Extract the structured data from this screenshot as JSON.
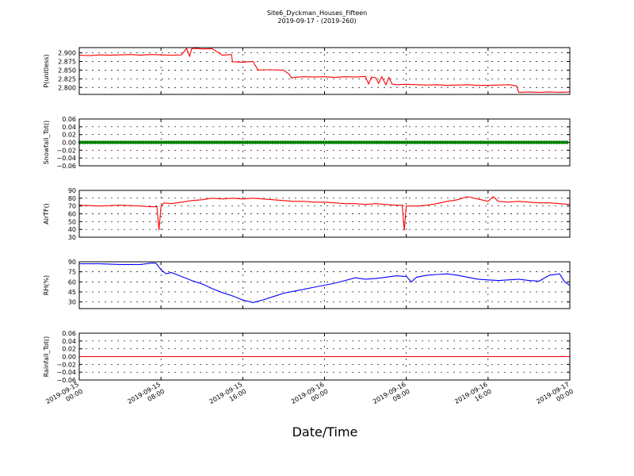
{
  "figure": {
    "title": "Site6_Dyckman_Houses_Fifteen",
    "subtitle": "2019-09-17 - (2019-260)",
    "xlabel": "Date/Time"
  },
  "chart_data": {
    "type": "line",
    "title": "Site6_Dyckman_Houses_Fifteen",
    "subtitle": "2019-09-17 - (2019-260)",
    "xlabel": "Date/Time",
    "x_ticks": [
      {
        "line1": "2019-09-15",
        "line2": "00:00",
        "t": 0
      },
      {
        "line1": "2019-09-15",
        "line2": "08:00",
        "t": 8
      },
      {
        "line1": "2019-09-15",
        "line2": "16:00",
        "t": 16
      },
      {
        "line1": "2019-09-16",
        "line2": "00:00",
        "t": 24
      },
      {
        "line1": "2019-09-16",
        "line2": "08:00",
        "t": 32
      },
      {
        "line1": "2019-09-16",
        "line2": "16:00",
        "t": 40
      },
      {
        "line1": "2019-09-17",
        "line2": "00:00",
        "t": 48
      }
    ],
    "xlim": [
      0,
      48
    ],
    "grid": true,
    "panels": [
      {
        "ylabel": "P(unitless)",
        "ylim": [
          2.78,
          2.915
        ],
        "yticks": [
          2.8,
          2.825,
          2.85,
          2.875,
          2.9
        ],
        "ytick_labels": [
          "2.800",
          "2.825",
          "2.850",
          "2.875",
          "2.900"
        ],
        "color": "#ff0000",
        "style": "line",
        "series": {
          "x": [
            0,
            1,
            2,
            3,
            4,
            5,
            6,
            7,
            8,
            9,
            10,
            10.5,
            10.8,
            11,
            11.5,
            12,
            13,
            14,
            14.9,
            15,
            16,
            17,
            17.5,
            18,
            19,
            20,
            20.5,
            20.8,
            21,
            21.5,
            22,
            23,
            24,
            25,
            26,
            27,
            28,
            28.3,
            28.6,
            29,
            29.3,
            29.6,
            30,
            30.3,
            30.6,
            31,
            32,
            33,
            34,
            35,
            36,
            37,
            38,
            39,
            40,
            41,
            42,
            42.5,
            42.8,
            43,
            44,
            45,
            46,
            47,
            48
          ],
          "values": [
            2.893,
            2.892,
            2.894,
            2.893,
            2.894,
            2.895,
            2.893,
            2.895,
            2.894,
            2.893,
            2.894,
            2.913,
            2.89,
            2.912,
            2.913,
            2.911,
            2.912,
            2.893,
            2.895,
            2.874,
            2.873,
            2.875,
            2.85,
            2.851,
            2.851,
            2.85,
            2.839,
            2.827,
            2.829,
            2.83,
            2.831,
            2.83,
            2.831,
            2.829,
            2.831,
            2.83,
            2.832,
            2.81,
            2.83,
            2.828,
            2.812,
            2.831,
            2.808,
            2.829,
            2.81,
            2.808,
            2.809,
            2.808,
            2.807,
            2.808,
            2.806,
            2.807,
            2.808,
            2.806,
            2.806,
            2.807,
            2.808,
            2.806,
            2.804,
            2.786,
            2.787,
            2.786,
            2.787,
            2.786,
            2.787
          ]
        }
      },
      {
        "ylabel": "Snowfall_Tot()",
        "ylim": [
          -0.06,
          0.06
        ],
        "yticks": [
          -0.06,
          -0.04,
          -0.02,
          0.0,
          0.02,
          0.04,
          0.06
        ],
        "ytick_labels": [
          "−0.06",
          "−0.04",
          "−0.02",
          "0.00",
          "0.02",
          "0.04",
          "0.06"
        ],
        "color": "#008000",
        "style": "markers",
        "series": {
          "x": [
            0,
            48
          ],
          "values": [
            0,
            0
          ]
        }
      },
      {
        "ylabel": "AirTF()",
        "ylim": [
          30,
          90
        ],
        "yticks": [
          30,
          40,
          50,
          60,
          70,
          80,
          90
        ],
        "ytick_labels": [
          "30",
          "40",
          "50",
          "60",
          "70",
          "80",
          "90"
        ],
        "color": "#ff0000",
        "style": "line",
        "series": {
          "x": [
            0,
            2,
            4,
            6,
            7,
            7.6,
            7.8,
            8,
            8.3,
            9,
            10,
            11,
            12,
            13,
            14,
            15,
            16,
            17,
            18,
            19,
            20,
            21,
            22,
            23,
            24,
            25,
            26,
            27,
            28,
            29,
            30,
            31,
            31.6,
            31.8,
            32,
            33,
            34,
            35,
            36,
            37,
            38,
            39,
            40,
            40.5,
            41,
            42,
            43,
            44,
            45,
            46,
            47,
            48
          ],
          "values": [
            71,
            70,
            71,
            70,
            69,
            69,
            39,
            70,
            74,
            73,
            75,
            77,
            78,
            80,
            79,
            80,
            79,
            80,
            79,
            78,
            77,
            76,
            76,
            75,
            75,
            74,
            73,
            73,
            72,
            73,
            72,
            71,
            71,
            39,
            70,
            70,
            71,
            73,
            76,
            78,
            82,
            79,
            76,
            82,
            76,
            75,
            76,
            75,
            74,
            74,
            73,
            72
          ]
        }
      },
      {
        "ylabel": "RH(%)",
        "ylim": [
          20,
          90
        ],
        "yticks": [
          30,
          45,
          60,
          75,
          90
        ],
        "ytick_labels": [
          "30",
          "45",
          "60",
          "75",
          "90"
        ],
        "color": "#0000ff",
        "style": "line",
        "series": {
          "x": [
            0,
            2,
            4,
            6,
            7,
            7.5,
            8,
            8.5,
            9,
            10,
            11,
            12,
            13,
            14,
            15,
            16,
            17,
            18,
            19,
            20,
            21,
            22,
            23,
            24,
            25,
            26,
            27,
            28,
            29,
            30,
            31,
            32,
            32.5,
            33,
            34,
            35,
            36,
            37,
            38,
            39,
            40,
            41,
            42,
            43,
            44,
            45,
            46,
            47,
            47.5,
            48
          ],
          "values": [
            87,
            87,
            86,
            86,
            88,
            88,
            78,
            72,
            74,
            68,
            62,
            57,
            50,
            44,
            39,
            33,
            29,
            33,
            38,
            43,
            46,
            49,
            52,
            55,
            58,
            62,
            66,
            64,
            65,
            67,
            69,
            68,
            60,
            67,
            70,
            71,
            72,
            70,
            67,
            64,
            63,
            62,
            63,
            64,
            62,
            61,
            70,
            72,
            60,
            55
          ]
        }
      },
      {
        "ylabel": "Rainfall_Tot()",
        "ylim": [
          -0.06,
          0.06
        ],
        "yticks": [
          -0.06,
          -0.04,
          -0.02,
          0.0,
          0.02,
          0.04,
          0.06
        ],
        "ytick_labels": [
          "−0.06",
          "−0.04",
          "−0.02",
          "0.00",
          "0.02",
          "0.04",
          "0.06"
        ],
        "color": "#ff0000",
        "style": "line",
        "series": {
          "x": [
            0,
            48
          ],
          "values": [
            0,
            0
          ]
        }
      }
    ]
  }
}
